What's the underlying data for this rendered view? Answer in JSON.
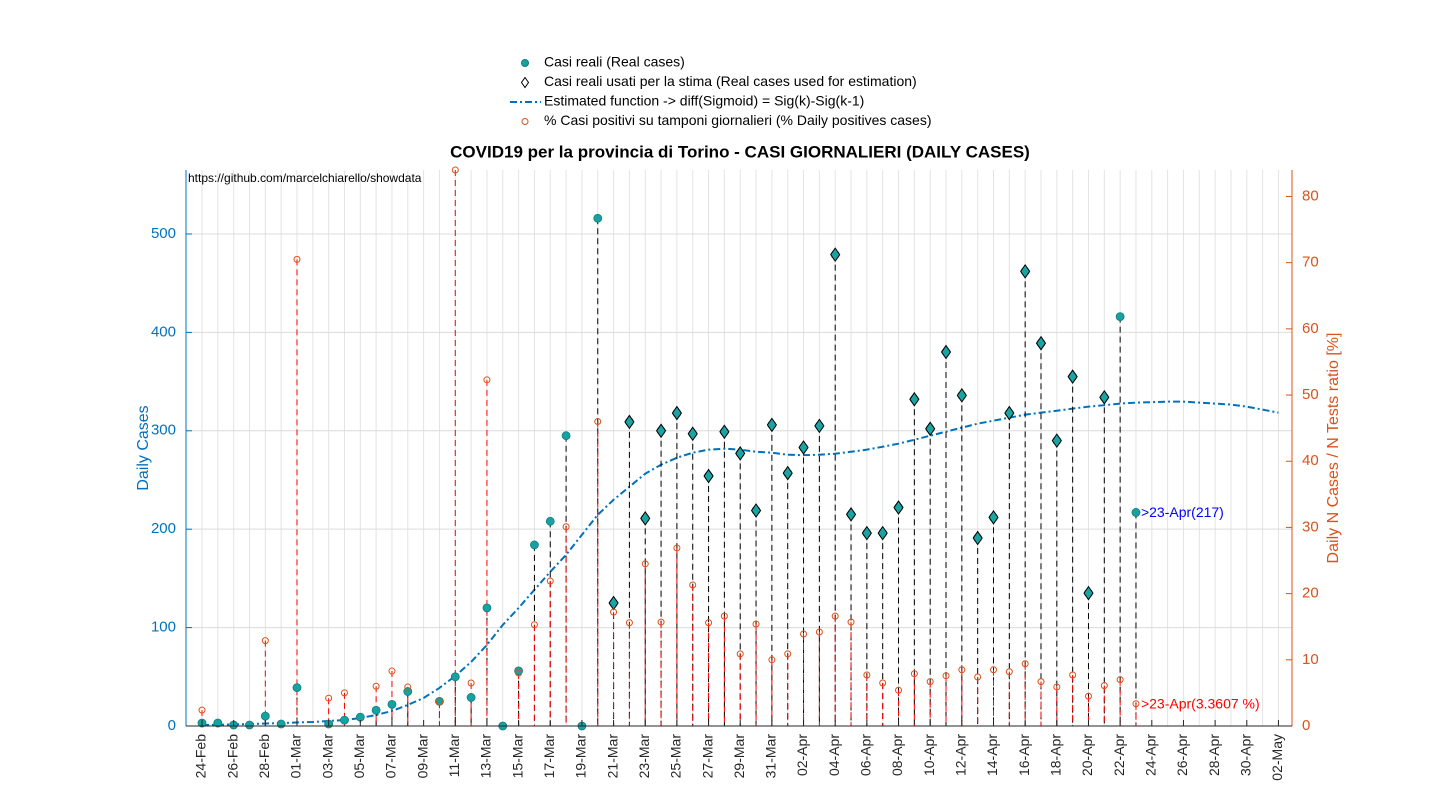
{
  "chart_data": {
    "type": "combo",
    "title": "COVID19 per la provincia di Torino - CASI GIORNALIERI (DAILY CASES)",
    "ylabel": "Daily Cases",
    "y2label": "Daily N Cases / N Tests ratio [%]",
    "categories": [
      "24-Feb",
      null,
      "26-Feb",
      null,
      "28-Feb",
      null,
      "01-Mar",
      null,
      "03-Mar",
      null,
      "05-Mar",
      null,
      "07-Mar",
      null,
      "09-Mar",
      null,
      "11-Mar",
      null,
      "13-Mar",
      null,
      "15-Mar",
      null,
      "17-Mar",
      null,
      "19-Mar",
      null,
      "21-Mar",
      null,
      "23-Mar",
      null,
      "25-Mar",
      null,
      "27-Mar",
      null,
      "29-Mar",
      null,
      "31-Mar",
      null,
      "02-Apr",
      null,
      "04-Apr",
      null,
      "06-Apr",
      null,
      "08-Apr",
      null,
      "10-Apr",
      null,
      "12-Apr",
      null,
      "14-Apr",
      null,
      "16-Apr",
      null,
      "18-Apr",
      null,
      "20-Apr",
      null,
      "22-Apr",
      null,
      "24-Apr",
      null,
      "26-Apr",
      null,
      "28-Apr",
      null,
      "30-Apr",
      null,
      "02-May"
    ],
    "ylim": [
      0,
      565
    ],
    "yticks": [
      0,
      100,
      200,
      300,
      400,
      500
    ],
    "y2lim": [
      0,
      84
    ],
    "y2ticks": [
      0,
      10,
      20,
      30,
      40,
      50,
      60,
      70,
      80
    ],
    "grid": true,
    "legend": "top",
    "annotations": [
      {
        "text": "https://github.com/marcelchiarello/showdata",
        "color": "#000000"
      },
      {
        "text": ">23-Apr(217)",
        "color": "#0000ff"
      },
      {
        "text": ">23-Apr(3.3607 %)",
        "color": "#ff0000"
      }
    ],
    "series": [
      {
        "name": "Casi reali (Real cases)",
        "type": "scatter",
        "marker": "dot",
        "color": "#17a2a2",
        "stem_color": "#000000",
        "values": [
          3,
          3,
          1,
          1,
          10,
          2,
          39,
          null,
          2,
          6,
          9,
          16,
          22,
          35,
          null,
          25,
          50,
          29,
          120,
          0,
          56,
          184,
          208,
          295,
          0,
          516,
          125,
          309,
          211,
          300,
          318,
          297,
          254,
          299,
          277,
          219,
          306,
          257,
          283,
          305,
          479,
          215,
          196,
          196,
          222,
          332,
          302,
          380,
          336,
          191,
          212,
          318,
          462,
          389,
          290,
          355,
          135,
          334,
          416,
          217,
          null,
          null,
          null,
          null,
          null,
          null,
          null,
          null,
          null
        ]
      },
      {
        "name": "Casi reali usati per la stima (Real cases used for estimation)",
        "type": "scatter",
        "marker": "diamond",
        "color": "#1aa4a4",
        "values": [
          null,
          null,
          null,
          null,
          null,
          null,
          null,
          null,
          null,
          null,
          null,
          null,
          null,
          null,
          null,
          null,
          null,
          null,
          null,
          null,
          null,
          null,
          null,
          null,
          null,
          null,
          125,
          309,
          211,
          300,
          318,
          297,
          254,
          299,
          277,
          219,
          306,
          257,
          283,
          305,
          479,
          215,
          196,
          196,
          222,
          332,
          302,
          380,
          336,
          191,
          212,
          318,
          462,
          389,
          290,
          355,
          135,
          334,
          null,
          null,
          null,
          null,
          null,
          null,
          null,
          null,
          null,
          null,
          null
        ]
      },
      {
        "name": "Estimated function -> diff(Sigmoid) = Sig(k)-Sig(k-1)",
        "type": "line",
        "color": "#0072bd",
        "values": [
          1.0,
          1.3,
          1.6,
          2.0,
          2.5,
          3.0,
          3.6,
          4.1,
          5.1,
          6.1,
          8.1,
          11.2,
          15.3,
          21.4,
          28.5,
          38.7,
          50.9,
          65.1,
          82.4,
          102.7,
          120.0,
          138.4,
          156.7,
          174.0,
          194.3,
          214.6,
          229.9,
          243.1,
          256.4,
          265.5,
          272.6,
          277.7,
          280.8,
          281.8,
          280.8,
          278.7,
          277.7,
          275.7,
          275.2,
          275.7,
          276.7,
          278.7,
          280.8,
          283.8,
          286.9,
          290.9,
          295.0,
          299.1,
          303.2,
          307.2,
          310.3,
          313.3,
          316.4,
          318.4,
          320.4,
          322.5,
          324.5,
          326.0,
          327.6,
          328.6,
          329.1,
          329.6,
          329.6,
          328.6,
          327.6,
          326.6,
          324.5,
          321.5,
          318.4
        ]
      },
      {
        "name": "% Casi positivi su tamponi giornalieri (% Daily positives cases)",
        "type": "scatter",
        "marker": "circle",
        "axis": "y2",
        "color": "#d95319",
        "stem_color": "#ff0000",
        "values": [
          2.4,
          null,
          null,
          null,
          12.9,
          null,
          70.5,
          null,
          4.2,
          5.0,
          null,
          6.0,
          8.3,
          5.9,
          null,
          3.6,
          84,
          6.5,
          52.3,
          null,
          8.0,
          15.3,
          21.9,
          30.1,
          null,
          46.0,
          17.2,
          15.6,
          24.5,
          15.7,
          26.9,
          21.3,
          15.6,
          16.6,
          10.9,
          15.4,
          10.0,
          10.9,
          13.9,
          14.2,
          16.6,
          15.7,
          7.7,
          6.5,
          5.4,
          7.9,
          6.7,
          7.6,
          8.5,
          7.4,
          8.5,
          8.2,
          9.4,
          6.7,
          5.9,
          7.7,
          4.5,
          6.1,
          7.0,
          3.3607,
          null,
          null,
          null,
          null,
          null,
          null,
          null,
          null,
          null
        ]
      }
    ]
  }
}
